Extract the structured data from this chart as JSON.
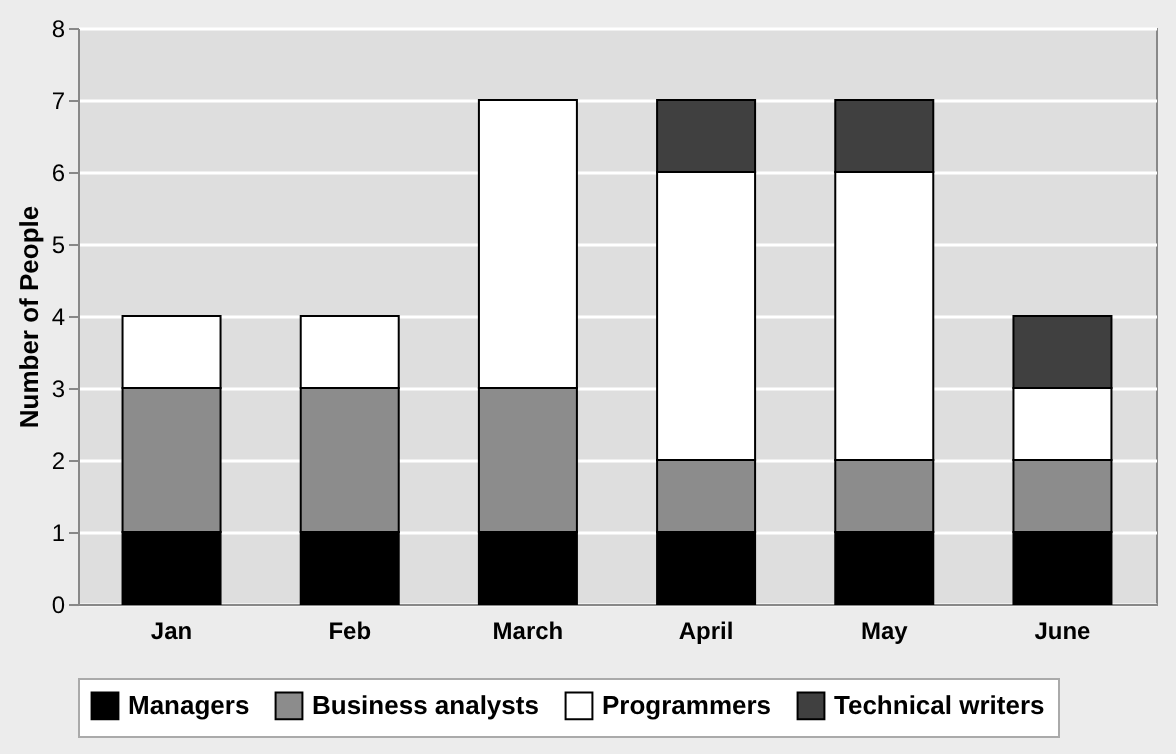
{
  "chart_data": {
    "type": "bar",
    "stacked": true,
    "ylabel": "Number of People",
    "categories": [
      "Jan",
      "Feb",
      "March",
      "April",
      "May",
      "June"
    ],
    "series": [
      {
        "name": "Managers",
        "color": "#000000",
        "values": [
          1,
          1,
          1,
          1,
          1,
          1
        ]
      },
      {
        "name": "Business analysts",
        "color": "#8c8c8c",
        "values": [
          2,
          2,
          2,
          1,
          1,
          1
        ]
      },
      {
        "name": "Programmers",
        "color": "#ffffff",
        "values": [
          1,
          1,
          4,
          4,
          4,
          1
        ]
      },
      {
        "name": "Technical writers",
        "color": "#404040",
        "values": [
          null,
          null,
          null,
          1,
          1,
          1
        ]
      }
    ],
    "ylim": [
      0,
      8
    ],
    "yticks": [
      0,
      1,
      2,
      3,
      4,
      5,
      6,
      7,
      8
    ],
    "grid": "y",
    "legend": "bottom"
  }
}
